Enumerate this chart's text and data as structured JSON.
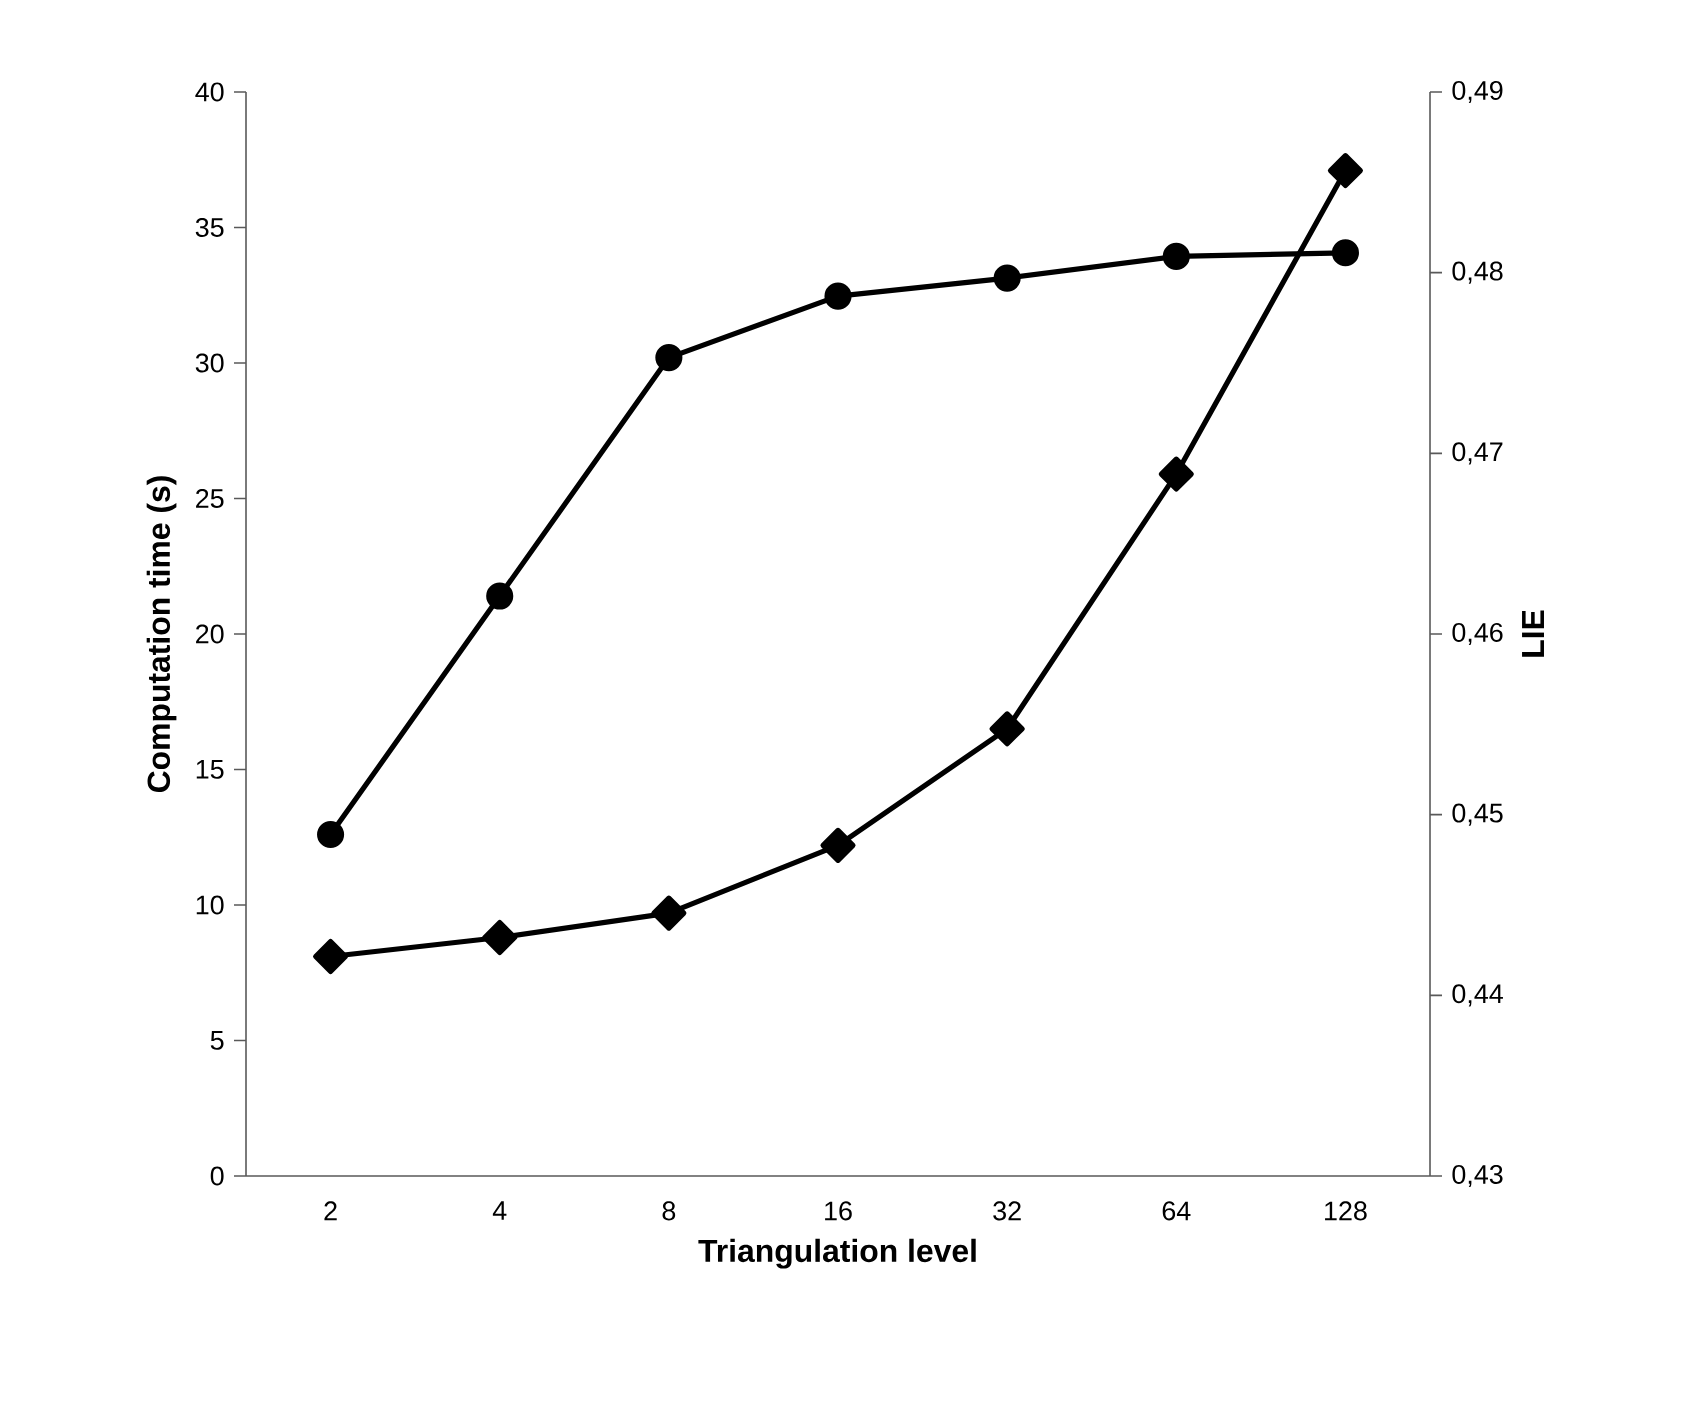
{
  "chart_data": {
    "type": "line",
    "xlabel": "Triangulation level",
    "ylabel": "Computation time (s)",
    "y2label": "LIE",
    "categories": [
      "2",
      "4",
      "8",
      "16",
      "32",
      "64",
      "128"
    ],
    "series": [
      {
        "color": "#000000",
        "marker": "diamond",
        "values": [
          8.1,
          8.8,
          9.7,
          12.2,
          16.5,
          25.9,
          37.1
        ]
      },
      {
        "color": "#000000",
        "marker": "circle",
        "axis": "y2",
        "values": [
          0.4489,
          0.4621,
          0.4753,
          0.4787,
          0.4797,
          0.4809,
          0.4811
        ]
      }
    ],
    "ylim": [
      0,
      40
    ],
    "yticks": [
      0,
      5,
      10,
      15,
      20,
      25,
      30,
      35,
      40
    ],
    "y2lim": [
      0.43,
      0.49
    ],
    "y2ticks": [
      {
        "value": 0.43,
        "label": "0,43"
      },
      {
        "value": 0.44,
        "label": "0,44"
      },
      {
        "value": 0.45,
        "label": "0,45"
      },
      {
        "value": 0.46,
        "label": "0,46"
      },
      {
        "value": 0.47,
        "label": "0,47"
      },
      {
        "value": 0.48,
        "label": "0,48"
      },
      {
        "value": 0.49,
        "label": "0,49"
      }
    ]
  }
}
